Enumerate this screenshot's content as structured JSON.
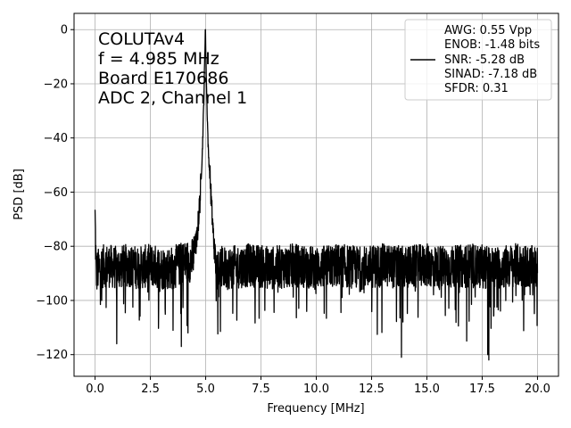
{
  "chart_data": {
    "type": "line",
    "title": "",
    "xlabel": "Frequency [MHz]",
    "ylabel": "PSD [dB]",
    "xlim": [
      -0.95,
      20.95
    ],
    "ylim": [
      -128,
      6
    ],
    "xticks": [
      0.0,
      2.5,
      5.0,
      7.5,
      10.0,
      12.5,
      15.0,
      17.5,
      20.0
    ],
    "xtick_labels": [
      "0.0",
      "2.5",
      "5.0",
      "7.5",
      "10.0",
      "12.5",
      "15.0",
      "17.5",
      "20.0"
    ],
    "yticks": [
      0,
      -20,
      -40,
      -60,
      -80,
      -100,
      -120
    ],
    "ytick_labels": [
      "0",
      "−20",
      "−40",
      "−60",
      "−80",
      "−100",
      "−120"
    ],
    "grid": true,
    "legend_position": "top-right",
    "line_color": "#000000",
    "annotation": [
      "COLUTAv4",
      "f = 4.985 MHz",
      "Board E170686",
      "ADC 2, Channel 1"
    ],
    "legend": [
      "AWG: 0.55 Vpp",
      "ENOB: -1.48 bits",
      "SNR: -5.28 dB",
      "SINAD: -7.18 dB",
      "SFDR: 0.31"
    ],
    "series": [
      {
        "x": [
          0.0,
          0.05,
          0.2,
          0.5,
          1.0,
          1.5,
          2.0,
          2.5,
          3.0,
          3.5,
          4.0,
          4.4,
          4.6,
          4.75,
          4.85,
          4.92,
          4.985,
          5.05,
          5.12,
          5.2,
          5.3,
          5.4,
          5.5,
          6.0,
          7.0,
          8.0,
          9.0,
          10.0,
          11.0,
          12.0,
          13.0,
          14.0,
          15.0,
          16.0,
          17.0,
          18.0,
          19.0,
          20.0
        ],
        "y": [
          -69,
          -90,
          -88,
          -87,
          -88,
          -87,
          -88,
          -87,
          -88,
          -88,
          -86,
          -85,
          -78,
          -62,
          -45,
          -25,
          0,
          -25,
          -45,
          -55,
          -70,
          -82,
          -88,
          -88,
          -87,
          -88,
          -87,
          -88,
          -87,
          -88,
          -87,
          -88,
          -87,
          -88,
          -87,
          -88,
          -87,
          -88
        ]
      }
    ],
    "noise_spikes": [
      {
        "x": 0.98,
        "y": -116
      },
      {
        "x": 3.9,
        "y": -117
      },
      {
        "x": 4.2,
        "y": -112
      },
      {
        "x": 13.85,
        "y": -121
      },
      {
        "x": 16.8,
        "y": -115
      },
      {
        "x": 17.8,
        "y": -122
      },
      {
        "x": 17.75,
        "y": -120
      }
    ]
  }
}
